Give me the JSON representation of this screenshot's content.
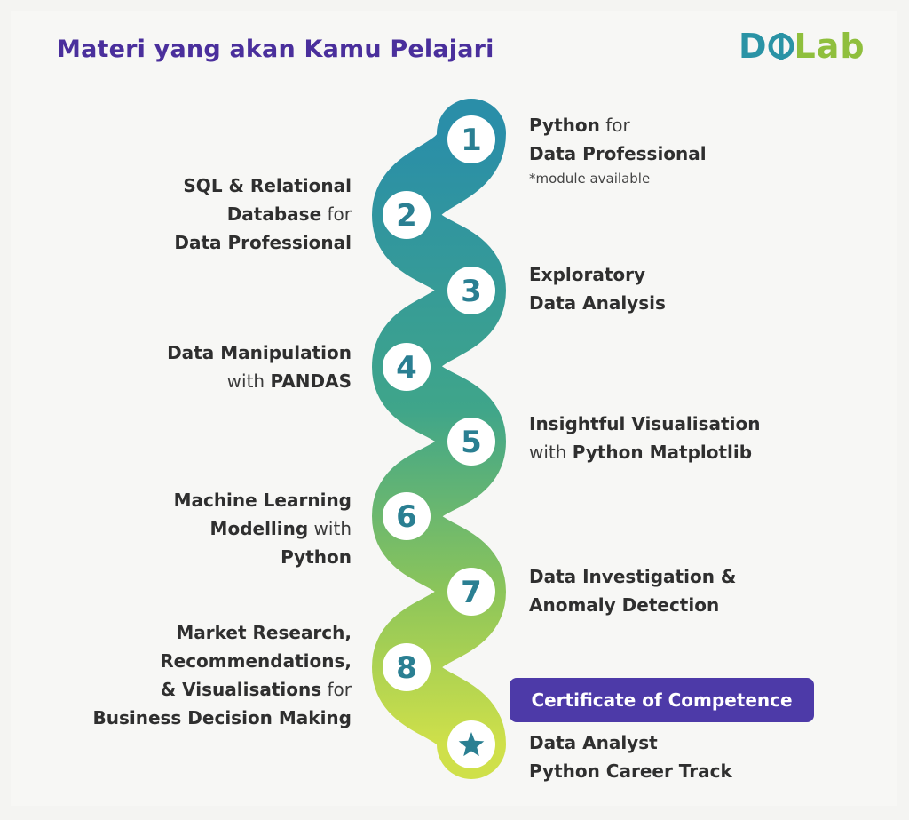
{
  "title": "Materi yang akan Kamu Pelajari",
  "logo": {
    "text_d": "D",
    "text_lab": "Lab"
  },
  "colors": {
    "title": "#4a2f9c",
    "path_top": "#2a8ea8",
    "path_bottom": "#c9dc4a",
    "certificate_bg": "#4d3aa8",
    "node_text": "#2a7f92"
  },
  "steps": [
    {
      "number": "1",
      "side": "right",
      "parts": [
        [
          "Python",
          " for"
        ],
        [
          "Data Professional",
          ""
        ]
      ]
    },
    {
      "number": "2",
      "side": "left",
      "parts": [
        [
          "SQL & Relational",
          ""
        ],
        [
          "Database",
          " for"
        ],
        [
          "Data Professional",
          ""
        ]
      ]
    },
    {
      "number": "3",
      "side": "right",
      "parts": [
        [
          "Exploratory",
          ""
        ],
        [
          "Data Analysis",
          ""
        ]
      ]
    },
    {
      "number": "4",
      "side": "left",
      "parts": [
        [
          "Data Manipulation",
          ""
        ],
        [
          "",
          "with "
        ],
        [
          "PANDAS",
          ""
        ]
      ]
    },
    {
      "number": "5",
      "side": "right",
      "parts": [
        [
          "Insightful Visualisation",
          ""
        ],
        [
          "",
          "with "
        ],
        [
          "Python Matplotlib",
          ""
        ]
      ]
    },
    {
      "number": "6",
      "side": "left",
      "parts": [
        [
          "Machine Learning",
          ""
        ],
        [
          "Modelling",
          " with "
        ],
        [
          "Python",
          ""
        ]
      ]
    },
    {
      "number": "7",
      "side": "right",
      "parts": [
        [
          "Data Investigation &",
          ""
        ],
        [
          "Anomaly Detection",
          ""
        ]
      ]
    },
    {
      "number": "8",
      "side": "left",
      "parts": [
        [
          "Market Research,",
          ""
        ],
        [
          "Recommendations,",
          ""
        ],
        [
          "& Visualisations",
          " for"
        ],
        [
          "Business Decision Making",
          ""
        ]
      ]
    }
  ],
  "step1_note": "*module available",
  "certificate": "Certificate of Competence",
  "final": {
    "icon": "star-icon",
    "line1": "Data Analyst",
    "line2": "Python Career Track"
  }
}
